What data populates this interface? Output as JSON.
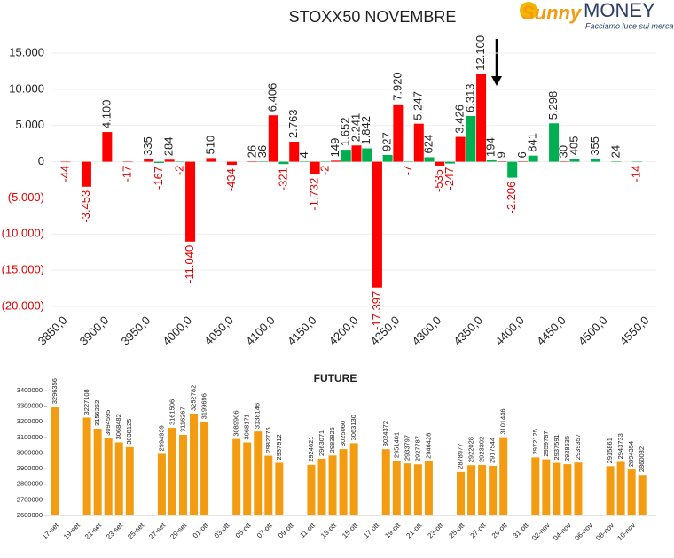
{
  "logo": {
    "name1": "Sunny",
    "name2": "MONEY",
    "tagline": "Facciamo luce sui mercati"
  },
  "chart_data": [
    {
      "type": "bar",
      "title": "STOXX50 NOVEMBRE",
      "xlim": [
        3850,
        4550
      ],
      "xticks": [
        {
          "value": 3850,
          "label": "3850,0"
        },
        {
          "value": 3900,
          "label": "3900,0"
        },
        {
          "value": 3950,
          "label": "3950,0"
        },
        {
          "value": 4000,
          "label": "4000,0"
        },
        {
          "value": 4050,
          "label": "4050,0"
        },
        {
          "value": 4100,
          "label": "4100,0"
        },
        {
          "value": 4150,
          "label": "4150,0"
        },
        {
          "value": 4200,
          "label": "4200,0"
        },
        {
          "value": 4250,
          "label": "4250,0"
        },
        {
          "value": 4300,
          "label": "4300,0"
        },
        {
          "value": 4350,
          "label": "4350,0"
        },
        {
          "value": 4400,
          "label": "4400,0"
        },
        {
          "value": 4450,
          "label": "4450,0"
        },
        {
          "value": 4500,
          "label": "4500,0"
        },
        {
          "value": 4550,
          "label": "4550,0"
        }
      ],
      "ylim": [
        -20000,
        15000
      ],
      "yticks": [
        {
          "value": 15000,
          "label": "15.000"
        },
        {
          "value": 10000,
          "label": "10.000"
        },
        {
          "value": 5000,
          "label": "5.000"
        },
        0,
        {
          "value": -5000,
          "label": "(5.000)"
        },
        {
          "value": -10000,
          "label": "(10.000)"
        },
        {
          "value": -15000,
          "label": "(15.000)"
        },
        {
          "value": -20000,
          "label": "(20.000)"
        }
      ],
      "grid": true,
      "series": [
        {
          "color": "#ff0000",
          "x": [
            3850,
            3875,
            3900,
            3925,
            3950,
            3975,
            4000,
            4025,
            4050,
            4075,
            4100,
            4125,
            4150,
            4175,
            4200,
            4225,
            4250,
            4275,
            4300,
            4325,
            4350,
            4375,
            4400,
            4450
          ],
          "values": [
            -44,
            -3453,
            4100,
            -17,
            335,
            284,
            -11040,
            510,
            -434,
            26,
            6406,
            2763,
            -1732,
            149,
            2241,
            -17397,
            7920,
            5247,
            -535,
            3426,
            12100,
            9,
            6,
            30
          ],
          "value_labels": [
            "-44",
            "-3.453",
            "4.100",
            "-17",
            "335",
            "284",
            "-11.040",
            "510",
            "-434",
            "26",
            "6.406",
            "2.763",
            "-1.732",
            "149",
            "2.241",
            "-17.397",
            "7.920",
            "5.247",
            "-535",
            "3.426",
            "12.100",
            "9",
            "6",
            "30"
          ]
        },
        {
          "color": "#00b050",
          "x": [
            3962.5,
            3987.5,
            4087.5,
            4112.5,
            4137.5,
            4162.5,
            4187.5,
            4212.5,
            4237.5,
            4262.5,
            4287.5,
            4312.5,
            4337.5,
            4362.5,
            4387.5,
            4412.5,
            4437.5,
            4462.5,
            4487.5,
            4512.5,
            4537.5
          ],
          "values": [
            -167,
            -2,
            36,
            -321,
            4,
            -2,
            1652,
            1842,
            927,
            -7,
            624,
            -247,
            6313,
            194,
            -2206,
            841,
            5298,
            405,
            355,
            24,
            -14
          ],
          "value_labels": [
            "-167",
            "-2",
            "36",
            "-321",
            "4",
            "-2",
            "1.652",
            "1.842",
            "927",
            "-7",
            "624",
            "-247",
            "6.313",
            "194",
            "-2.206",
            "841",
            "5.298",
            "405",
            "355",
            "24",
            "-14"
          ]
        }
      ]
    },
    {
      "type": "bar",
      "title": "FUTURE",
      "color": "#f39c12",
      "categories": [
        "17-set",
        null,
        "19-set",
        null,
        "21-set",
        null,
        "23-set",
        null,
        "25-set",
        null,
        "27-set",
        null,
        "29-set",
        null,
        "01-ott",
        null,
        "03-ott",
        null,
        "05-ott",
        null,
        "07-ott",
        null,
        "09-ott",
        null,
        "11-ott",
        null,
        "13-ott",
        null,
        "15-ott",
        null,
        "17-ott",
        null,
        "19-ott",
        null,
        "21-ott",
        null,
        "23-ott",
        null,
        "25-ott",
        null,
        "27-ott",
        null,
        "29-ott",
        null,
        "31-ott",
        null,
        "02-nov",
        null,
        "04-nov",
        null,
        "06-nov",
        null,
        "08-nov",
        null,
        "10-nov",
        null
      ],
      "values": [
        3296356,
        null,
        null,
        3227108,
        3156262,
        3094595,
        3068482,
        3038125,
        null,
        null,
        2994939,
        3161506,
        3116267,
        3252782,
        3199696,
        null,
        null,
        3089906,
        3068171,
        3138146,
        2982776,
        2937912,
        null,
        null,
        2924621,
        2963071,
        2983926,
        3025060,
        3063130,
        null,
        null,
        3024372,
        2951401,
        2933797,
        2927787,
        2946428,
        null,
        null,
        2878977,
        2922028,
        2923302,
        2917544,
        3101446,
        null,
        null,
        2972125,
        2959787,
        2937591,
        2928635,
        2939357,
        null,
        null,
        2915861,
        2943733,
        2894354,
        2860082
      ],
      "ylim": [
        2600000,
        3400000
      ],
      "yticks": [
        2600000,
        2700000,
        2800000,
        2900000,
        3000000,
        3100000,
        3200000,
        3300000,
        3400000
      ]
    }
  ]
}
